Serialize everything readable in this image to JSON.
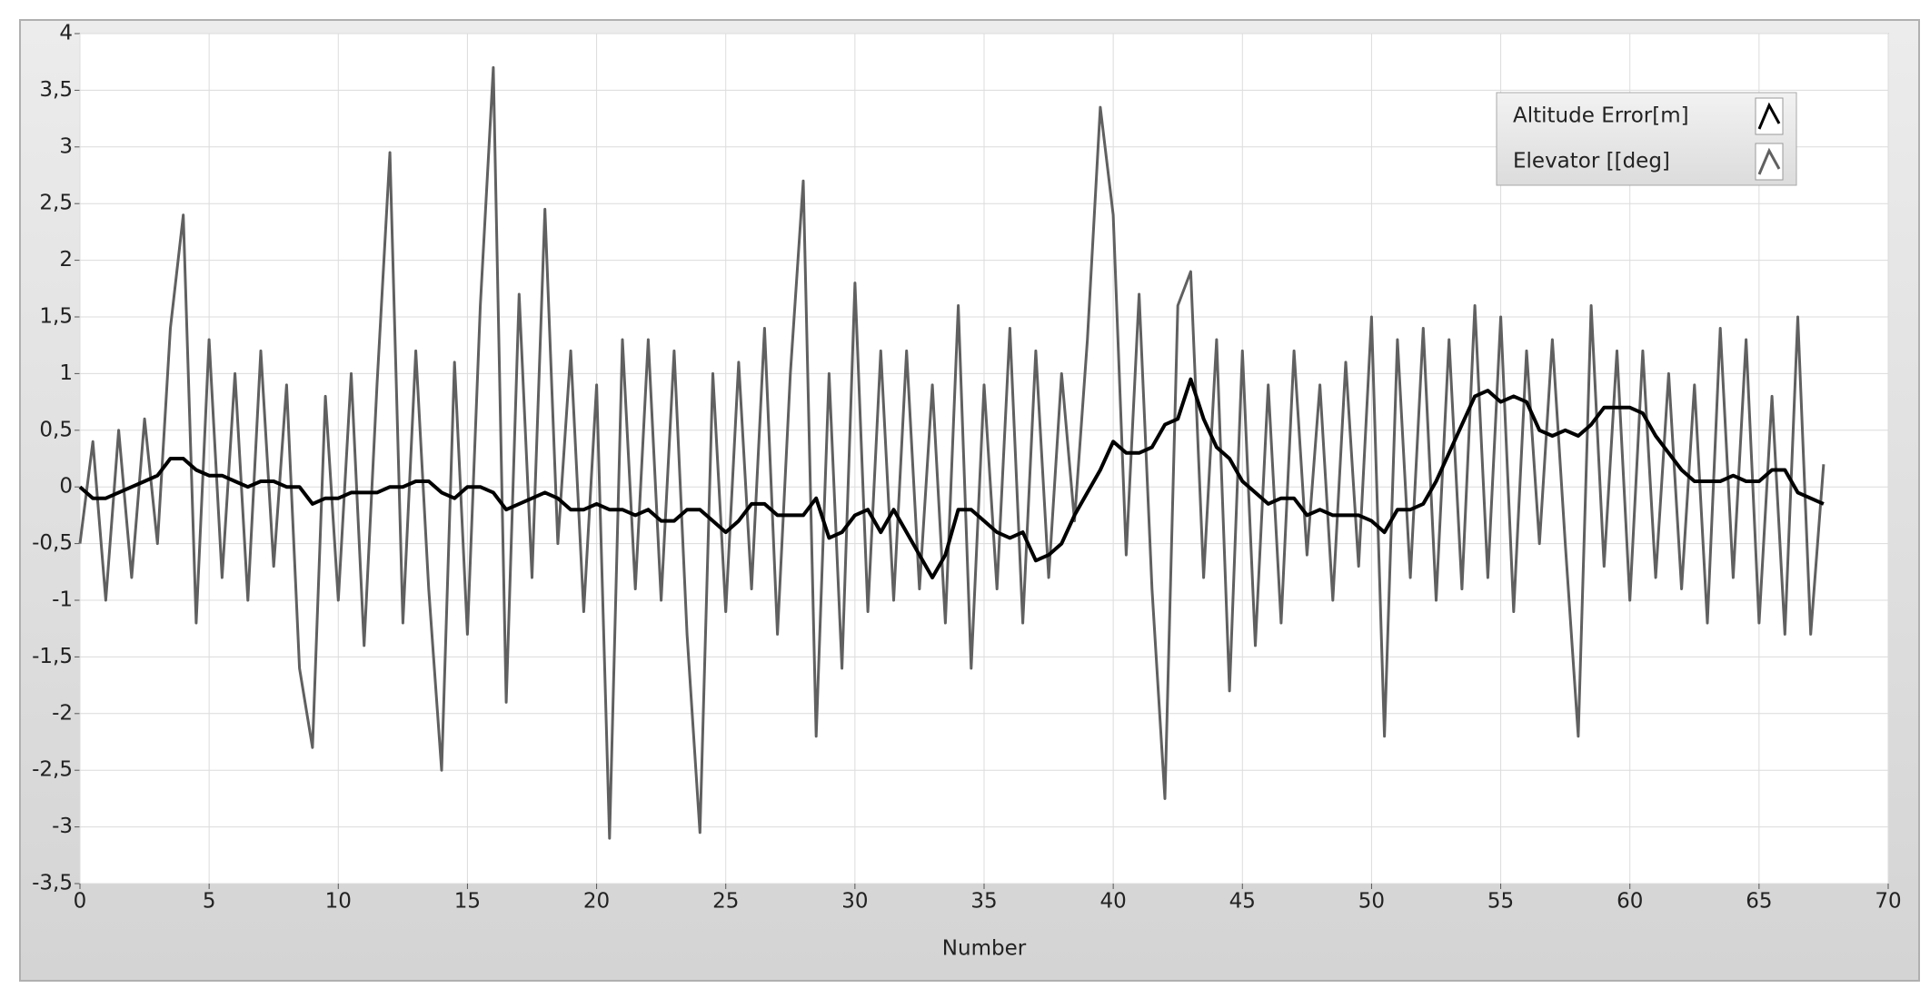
{
  "chart_data": {
    "type": "line",
    "x_label": "Number",
    "xlim": [
      0,
      70
    ],
    "xticks": [
      0,
      5,
      10,
      15,
      20,
      25,
      30,
      35,
      40,
      45,
      50,
      55,
      60,
      65,
      70
    ],
    "ylim": [
      -3.5,
      4
    ],
    "yticks": [
      {
        "value": -3.5,
        "label": "-3,5"
      },
      -3,
      {
        "value": -2.5,
        "label": "-2,5"
      },
      -2,
      {
        "value": -1.5,
        "label": "-1,5"
      },
      -1,
      {
        "value": -0.5,
        "label": "-0,5"
      },
      0,
      {
        "value": 0.5,
        "label": "0,5"
      },
      1,
      {
        "value": 1.5,
        "label": "1,5"
      },
      2,
      {
        "value": 2.5,
        "label": "2,5"
      },
      3,
      {
        "value": 3.5,
        "label": "3,5"
      },
      4
    ],
    "grid": true,
    "legend": "upper right",
    "x": [
      0,
      0.5,
      1,
      1.5,
      2,
      2.5,
      3,
      3.5,
      4,
      4.5,
      5,
      5.5,
      6,
      6.5,
      7,
      7.5,
      8,
      8.5,
      9,
      9.5,
      10,
      10.5,
      11,
      11.5,
      12,
      12.5,
      13,
      13.5,
      14,
      14.5,
      15,
      15.5,
      16,
      16.5,
      17,
      17.5,
      18,
      18.5,
      19,
      19.5,
      20,
      20.5,
      21,
      21.5,
      22,
      22.5,
      23,
      23.5,
      24,
      24.5,
      25,
      25.5,
      26,
      26.5,
      27,
      27.5,
      28,
      28.5,
      29,
      29.5,
      30,
      30.5,
      31,
      31.5,
      32,
      32.5,
      33,
      33.5,
      34,
      34.5,
      35,
      35.5,
      36,
      36.5,
      37,
      37.5,
      38,
      38.5,
      39,
      39.5,
      40,
      40.5,
      41,
      41.5,
      42,
      42.5,
      43,
      43.5,
      44,
      44.5,
      45,
      45.5,
      46,
      46.5,
      47,
      47.5,
      48,
      48.5,
      49,
      49.5,
      50,
      50.5,
      51,
      51.5,
      52,
      52.5,
      53,
      53.5,
      54,
      54.5,
      55,
      55.5,
      56,
      56.5,
      57,
      57.5,
      58,
      58.5,
      59,
      59.5,
      60,
      60.5,
      61,
      61.5,
      62,
      62.5,
      63,
      63.5,
      64,
      64.5,
      65,
      65.5,
      66,
      66.5,
      67,
      67.5
    ],
    "series": [
      {
        "name": "Altitude Error[m]",
        "color": "#000000",
        "values": [
          0,
          -0.1,
          -0.1,
          -0.05,
          0,
          0.05,
          0.1,
          0.25,
          0.25,
          0.15,
          0.1,
          0.1,
          0.05,
          0,
          0.05,
          0.05,
          0,
          0,
          -0.15,
          -0.1,
          -0.1,
          -0.05,
          -0.05,
          -0.05,
          0,
          0,
          0.05,
          0.05,
          -0.05,
          -0.1,
          0,
          0,
          -0.05,
          -0.2,
          -0.15,
          -0.1,
          -0.05,
          -0.1,
          -0.2,
          -0.2,
          -0.15,
          -0.2,
          -0.2,
          -0.25,
          -0.2,
          -0.3,
          -0.3,
          -0.2,
          -0.2,
          -0.3,
          -0.4,
          -0.3,
          -0.15,
          -0.15,
          -0.25,
          -0.25,
          -0.25,
          -0.1,
          -0.45,
          -0.4,
          -0.25,
          -0.2,
          -0.4,
          -0.2,
          -0.4,
          -0.6,
          -0.8,
          -0.6,
          -0.2,
          -0.2,
          -0.3,
          -0.4,
          -0.45,
          -0.4,
          -0.65,
          -0.6,
          -0.5,
          -0.25,
          -0.05,
          0.15,
          0.4,
          0.3,
          0.3,
          0.35,
          0.55,
          0.6,
          0.95,
          0.6,
          0.35,
          0.25,
          0.05,
          -0.05,
          -0.15,
          -0.1,
          -0.1,
          -0.25,
          -0.2,
          -0.25,
          -0.25,
          -0.25,
          -0.3,
          -0.4,
          -0.2,
          -0.2,
          -0.15,
          0.05,
          0.3,
          0.55,
          0.8,
          0.85,
          0.75,
          0.8,
          0.75,
          0.5,
          0.45,
          0.5,
          0.45,
          0.55,
          0.7,
          0.7,
          0.7,
          0.65,
          0.45,
          0.3,
          0.15,
          0.05,
          0.05,
          0.05,
          0.1,
          0.05,
          0.05,
          0.15,
          0.15,
          -0.05,
          -0.1,
          -0.15
        ]
      },
      {
        "name": "Elevator [[deg]",
        "color": "#606060",
        "values": [
          -0.5,
          0.4,
          -1,
          0.5,
          -0.8,
          0.6,
          -0.5,
          1.4,
          2.4,
          -1.2,
          1.3,
          -0.8,
          1,
          -1,
          1.2,
          -0.7,
          0.9,
          -1.6,
          -2.3,
          0.8,
          -1,
          1,
          -1.4,
          0.9,
          2.95,
          -1.2,
          1.2,
          -0.9,
          -2.5,
          1.1,
          -1.3,
          1.6,
          3.7,
          -1.9,
          1.7,
          -0.8,
          2.45,
          -0.5,
          1.2,
          -1.1,
          0.9,
          -3.1,
          1.3,
          -0.9,
          1.3,
          -1,
          1.2,
          -1.3,
          -3.05,
          1,
          -1.1,
          1.1,
          -0.9,
          1.4,
          -1.3,
          1,
          2.7,
          -2.2,
          1,
          -1.6,
          1.8,
          -1.1,
          1.2,
          -1,
          1.2,
          -0.9,
          0.9,
          -1.2,
          1.6,
          -1.6,
          0.9,
          -0.9,
          1.4,
          -1.2,
          1.2,
          -0.8,
          1,
          -0.3,
          1.3,
          3.35,
          2.4,
          -0.6,
          1.7,
          -0.9,
          -2.75,
          1.6,
          1.9,
          -0.8,
          1.3,
          -1.8,
          1.2,
          -1.4,
          0.9,
          -1.2,
          1.2,
          -0.6,
          0.9,
          -1,
          1.1,
          -0.7,
          1.5,
          -2.2,
          1.3,
          -0.8,
          1.4,
          -1,
          1.3,
          -0.9,
          1.6,
          -0.8,
          1.5,
          -1.1,
          1.2,
          -0.5,
          1.3,
          -0.5,
          -2.2,
          1.6,
          -0.7,
          1.2,
          -1,
          1.2,
          -0.8,
          1,
          -0.9,
          0.9,
          -1.2,
          1.4,
          -0.8,
          1.3,
          -1.2,
          0.8,
          -1.3,
          1.5,
          -1.3,
          0.2
        ]
      }
    ]
  }
}
